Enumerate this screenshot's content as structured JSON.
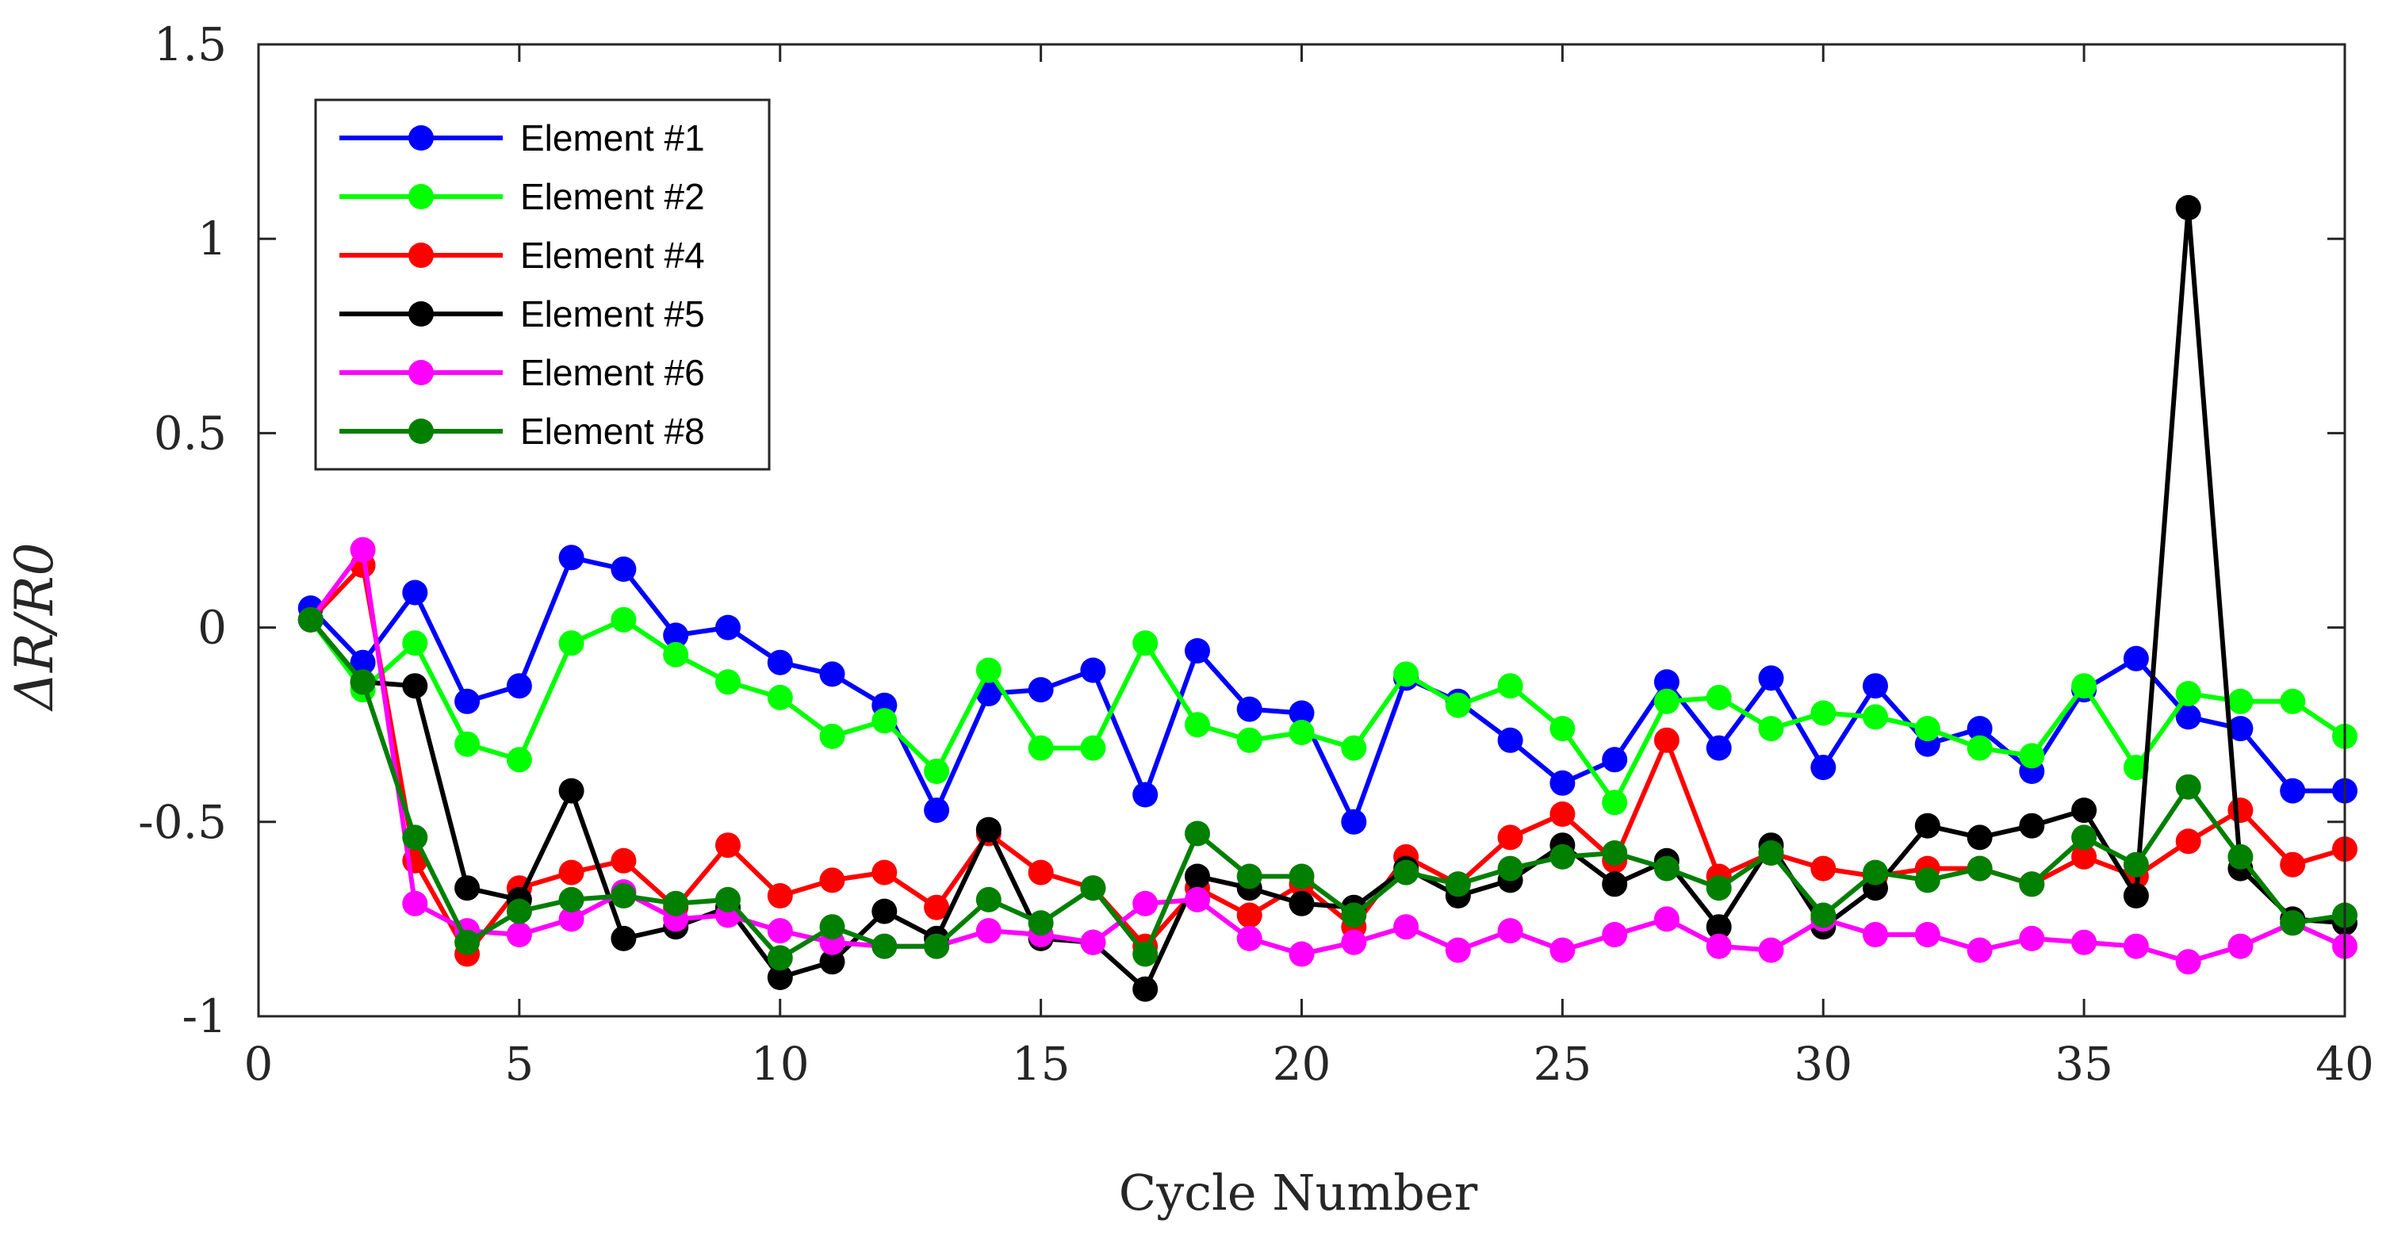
{
  "chart_data": {
    "type": "line",
    "title": "",
    "xlabel": "Cycle Number",
    "ylabel": "ΔR/R0",
    "xlim": [
      0,
      40
    ],
    "ylim": [
      -1,
      1.5
    ],
    "xticks": [
      0,
      5,
      10,
      15,
      20,
      25,
      30,
      35,
      40
    ],
    "xtick_labels": [
      "0",
      "5",
      "10",
      "15",
      "20",
      "25",
      "30",
      "35",
      "40"
    ],
    "yticks": [
      -1,
      -0.5,
      0,
      0.5,
      1,
      1.5
    ],
    "ytick_labels": [
      "-1",
      "-0.5",
      "0",
      "0.5",
      "1",
      "1.5"
    ],
    "grid": false,
    "legend_position": "top-left",
    "x": [
      1,
      2,
      3,
      4,
      5,
      6,
      7,
      8,
      9,
      10,
      11,
      12,
      13,
      14,
      15,
      16,
      17,
      18,
      19,
      20,
      21,
      22,
      23,
      24,
      25,
      26,
      27,
      28,
      29,
      30,
      31,
      32,
      33,
      34,
      35,
      36,
      37,
      38,
      39,
      40
    ],
    "series": [
      {
        "name": "Element #1",
        "color": "#0000ff",
        "values": [
          0.05,
          -0.09,
          0.09,
          -0.19,
          -0.15,
          0.18,
          0.15,
          -0.02,
          0.0,
          -0.09,
          -0.12,
          -0.2,
          -0.47,
          -0.17,
          -0.16,
          -0.11,
          -0.43,
          -0.06,
          -0.21,
          -0.22,
          -0.5,
          -0.13,
          -0.19,
          -0.29,
          -0.4,
          -0.34,
          -0.14,
          -0.31,
          -0.13,
          -0.36,
          -0.15,
          -0.3,
          -0.26,
          -0.37,
          -0.16,
          -0.08,
          -0.23,
          -0.26,
          -0.42,
          -0.42
        ]
      },
      {
        "name": "Element #2",
        "color": "#00ff00",
        "values": [
          0.02,
          -0.16,
          -0.04,
          -0.3,
          -0.34,
          -0.04,
          0.02,
          -0.07,
          -0.14,
          -0.18,
          -0.28,
          -0.24,
          -0.37,
          -0.11,
          -0.31,
          -0.31,
          -0.04,
          -0.25,
          -0.29,
          -0.27,
          -0.31,
          -0.12,
          -0.2,
          -0.15,
          -0.26,
          -0.45,
          -0.19,
          -0.18,
          -0.26,
          -0.22,
          -0.23,
          -0.26,
          -0.31,
          -0.33,
          -0.15,
          -0.36,
          -0.17,
          -0.19,
          -0.19,
          -0.28
        ]
      },
      {
        "name": "Element #4",
        "color": "#ff0000",
        "values": [
          0.02,
          0.16,
          -0.6,
          -0.84,
          -0.67,
          -0.63,
          -0.6,
          -0.72,
          -0.56,
          -0.69,
          -0.65,
          -0.63,
          -0.72,
          -0.53,
          -0.63,
          -0.67,
          -0.82,
          -0.67,
          -0.74,
          -0.66,
          -0.77,
          -0.59,
          -0.66,
          -0.54,
          -0.48,
          -0.6,
          -0.29,
          -0.64,
          -0.58,
          -0.62,
          -0.64,
          -0.62,
          -0.62,
          -0.66,
          -0.59,
          -0.64,
          -0.55,
          -0.47,
          -0.61,
          -0.57
        ]
      },
      {
        "name": "Element #5",
        "color": "#000000",
        "values": [
          0.02,
          -0.14,
          -0.15,
          -0.67,
          -0.7,
          -0.42,
          -0.8,
          -0.77,
          -0.72,
          -0.9,
          -0.86,
          -0.73,
          -0.8,
          -0.52,
          -0.8,
          -0.81,
          -0.93,
          -0.64,
          -0.67,
          -0.71,
          -0.72,
          -0.62,
          -0.69,
          -0.65,
          -0.56,
          -0.66,
          -0.6,
          -0.77,
          -0.56,
          -0.77,
          -0.67,
          -0.51,
          -0.54,
          -0.51,
          -0.47,
          -0.69,
          1.08,
          -0.62,
          -0.75,
          -0.76
        ]
      },
      {
        "name": "Element #6",
        "color": "#ff00ff",
        "values": [
          0.02,
          0.2,
          -0.71,
          -0.78,
          -0.79,
          -0.75,
          -0.68,
          -0.75,
          -0.74,
          -0.78,
          -0.81,
          -0.82,
          -0.82,
          -0.78,
          -0.79,
          -0.81,
          -0.71,
          -0.7,
          -0.8,
          -0.84,
          -0.81,
          -0.77,
          -0.83,
          -0.78,
          -0.83,
          -0.79,
          -0.75,
          -0.82,
          -0.83,
          -0.75,
          -0.79,
          -0.79,
          -0.83,
          -0.8,
          -0.81,
          -0.82,
          -0.86,
          -0.82,
          -0.76,
          -0.82
        ]
      },
      {
        "name": "Element #8",
        "color": "#007f00",
        "values": [
          0.02,
          -0.14,
          -0.54,
          -0.81,
          -0.73,
          -0.7,
          -0.69,
          -0.71,
          -0.7,
          -0.85,
          -0.77,
          -0.82,
          -0.82,
          -0.7,
          -0.76,
          -0.67,
          -0.84,
          -0.53,
          -0.64,
          -0.64,
          -0.74,
          -0.63,
          -0.66,
          -0.62,
          -0.59,
          -0.58,
          -0.62,
          -0.67,
          -0.58,
          -0.74,
          -0.63,
          -0.65,
          -0.62,
          -0.66,
          -0.54,
          -0.61,
          -0.41,
          -0.59,
          -0.76,
          -0.74
        ]
      }
    ]
  }
}
